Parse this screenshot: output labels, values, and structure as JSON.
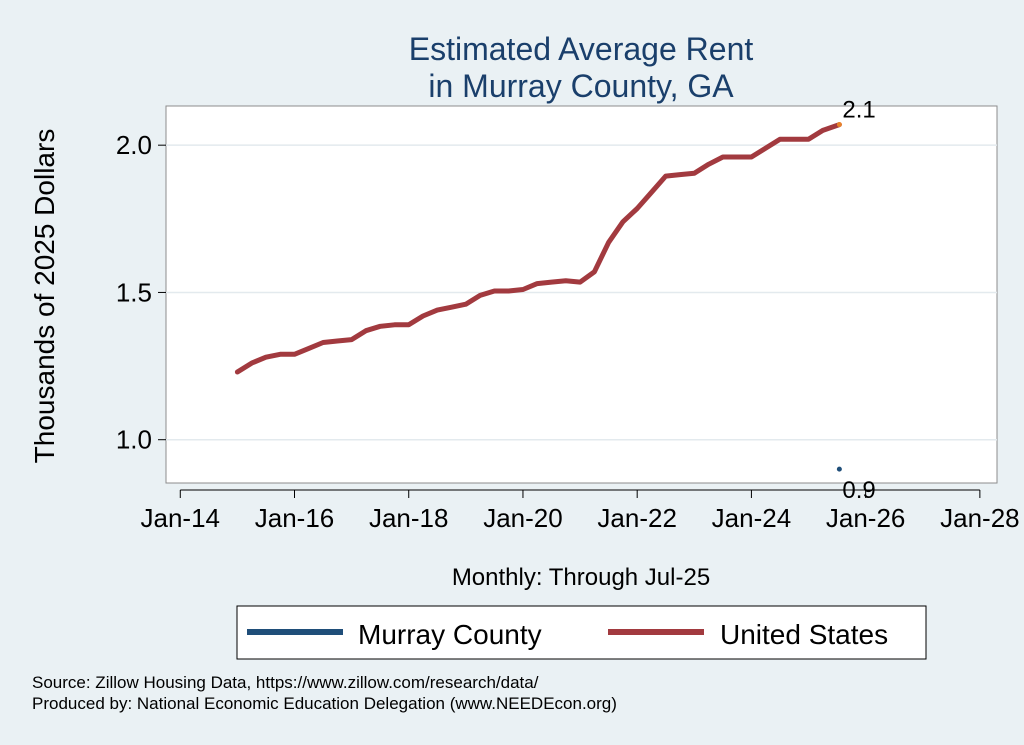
{
  "chart_data": {
    "type": "line",
    "title": "Estimated Average Rent",
    "subtitle": "in Murray County, GA",
    "xlabel": "Monthly: Through Jul-25",
    "ylabel": "Thousands of 2025 Dollars",
    "x_ticks": [
      "Jan-14",
      "Jan-16",
      "Jan-18",
      "Jan-20",
      "Jan-22",
      "Jan-24",
      "Jan-26",
      "Jan-28"
    ],
    "x_tick_values": [
      2014.0,
      2016.0,
      2018.0,
      2020.0,
      2022.0,
      2024.0,
      2026.0,
      2028.0
    ],
    "xlim": [
      2013.75,
      2028.3
    ],
    "y_ticks": [
      "1.0",
      "1.5",
      "2.0"
    ],
    "y_tick_values": [
      1.0,
      1.5,
      2.0
    ],
    "ylim": [
      0.853,
      2.133
    ],
    "grid": "horizontal",
    "legend_position": "bottom",
    "series": [
      {
        "name": "Murray County",
        "color": "#1f4e79",
        "x": [
          2025.54
        ],
        "values": [
          0.9
        ],
        "end_label": "0.9"
      },
      {
        "name": "United States",
        "color": "#a23a3f",
        "x": [
          2015.0,
          2015.25,
          2015.5,
          2015.75,
          2016.0,
          2016.25,
          2016.5,
          2016.75,
          2017.0,
          2017.25,
          2017.5,
          2017.75,
          2018.0,
          2018.25,
          2018.5,
          2018.75,
          2019.0,
          2019.25,
          2019.5,
          2019.75,
          2020.0,
          2020.25,
          2020.5,
          2020.75,
          2021.0,
          2021.25,
          2021.5,
          2021.75,
          2022.0,
          2022.25,
          2022.5,
          2022.75,
          2023.0,
          2023.25,
          2023.5,
          2023.75,
          2024.0,
          2024.25,
          2024.5,
          2024.75,
          2025.0,
          2025.25,
          2025.54
        ],
        "values": [
          1.23,
          1.26,
          1.28,
          1.29,
          1.29,
          1.31,
          1.33,
          1.335,
          1.34,
          1.37,
          1.385,
          1.39,
          1.39,
          1.42,
          1.44,
          1.45,
          1.46,
          1.49,
          1.505,
          1.505,
          1.51,
          1.53,
          1.535,
          1.54,
          1.535,
          1.57,
          1.67,
          1.74,
          1.785,
          1.84,
          1.895,
          1.9,
          1.905,
          1.935,
          1.96,
          1.96,
          1.96,
          1.99,
          2.02,
          2.02,
          2.02,
          2.05,
          2.07
        ],
        "end_label": "2.1",
        "end_marker_color": "#e8822a"
      }
    ]
  },
  "footer": {
    "source": "Source: Zillow Housing Data, https://www.zillow.com/research/data/",
    "produced": "Produced by: National Economic Education Delegation (www.NEEDEcon.org)"
  }
}
